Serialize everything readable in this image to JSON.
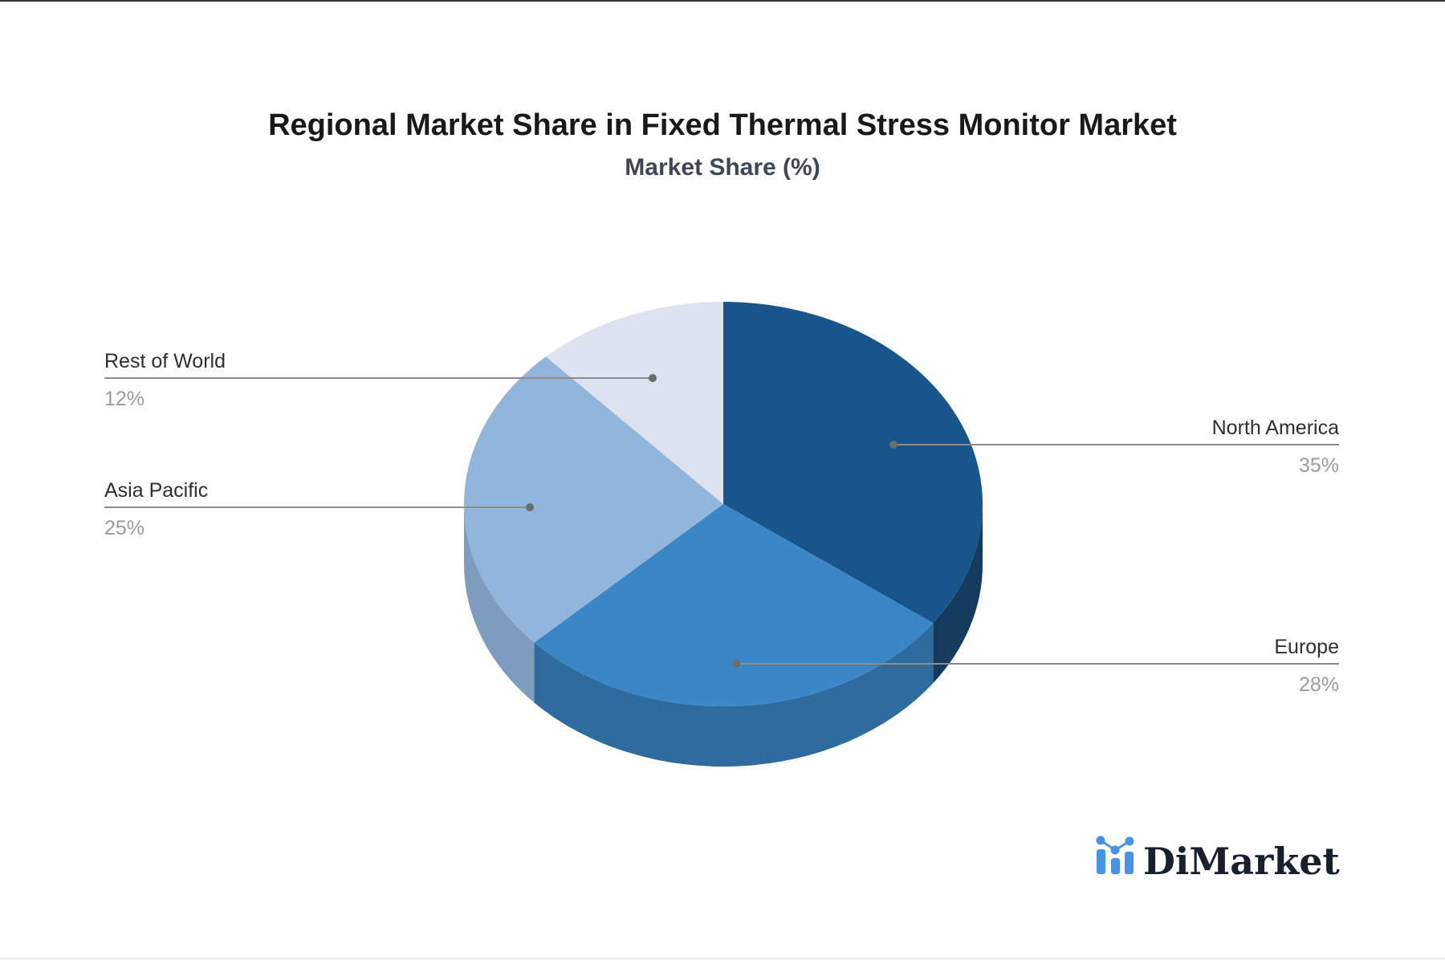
{
  "page": {
    "background_color": "#ffffff",
    "top_border_color": "#333333",
    "bottom_border_color": "#eceff4"
  },
  "chart_data": {
    "type": "pie",
    "title": "Regional Market Share in Fixed Thermal Stress Monitor Market",
    "subtitle": "Market Share (%)",
    "title_color": "#191919",
    "subtitle_color": "#3d4757",
    "is_3d": true,
    "start_angle_deg": 0,
    "direction": "clockwise",
    "legend": "none",
    "label_style": "callout-lines",
    "total": 100,
    "slices": [
      {
        "label": "North America",
        "value": 35,
        "pct_label": "35%",
        "color": "#18558b",
        "side_color": "#143a5e"
      },
      {
        "label": "Europe",
        "value": 28,
        "pct_label": "28%",
        "color": "#3a87c8",
        "side_color": "#2e6b9e"
      },
      {
        "label": "Asia Pacific",
        "value": 25,
        "pct_label": "25%",
        "color": "#92b5dc",
        "side_color": "#7e9cbd"
      },
      {
        "label": "Rest of World",
        "value": 12,
        "pct_label": "12%",
        "color": "#dce3ef",
        "side_color": "#c2cbd9"
      }
    ],
    "label_name_color": "#2f2f2f",
    "label_pct_color": "#9b9b9b",
    "leader_line_color": "#8c8c8c",
    "leader_dot_color": "#6b6b6b"
  },
  "branding": {
    "logo_text": "DiMarket",
    "logo_text_color": "#18202e",
    "icon": "bar-chart-icon",
    "icon_color": "#4793e6"
  }
}
